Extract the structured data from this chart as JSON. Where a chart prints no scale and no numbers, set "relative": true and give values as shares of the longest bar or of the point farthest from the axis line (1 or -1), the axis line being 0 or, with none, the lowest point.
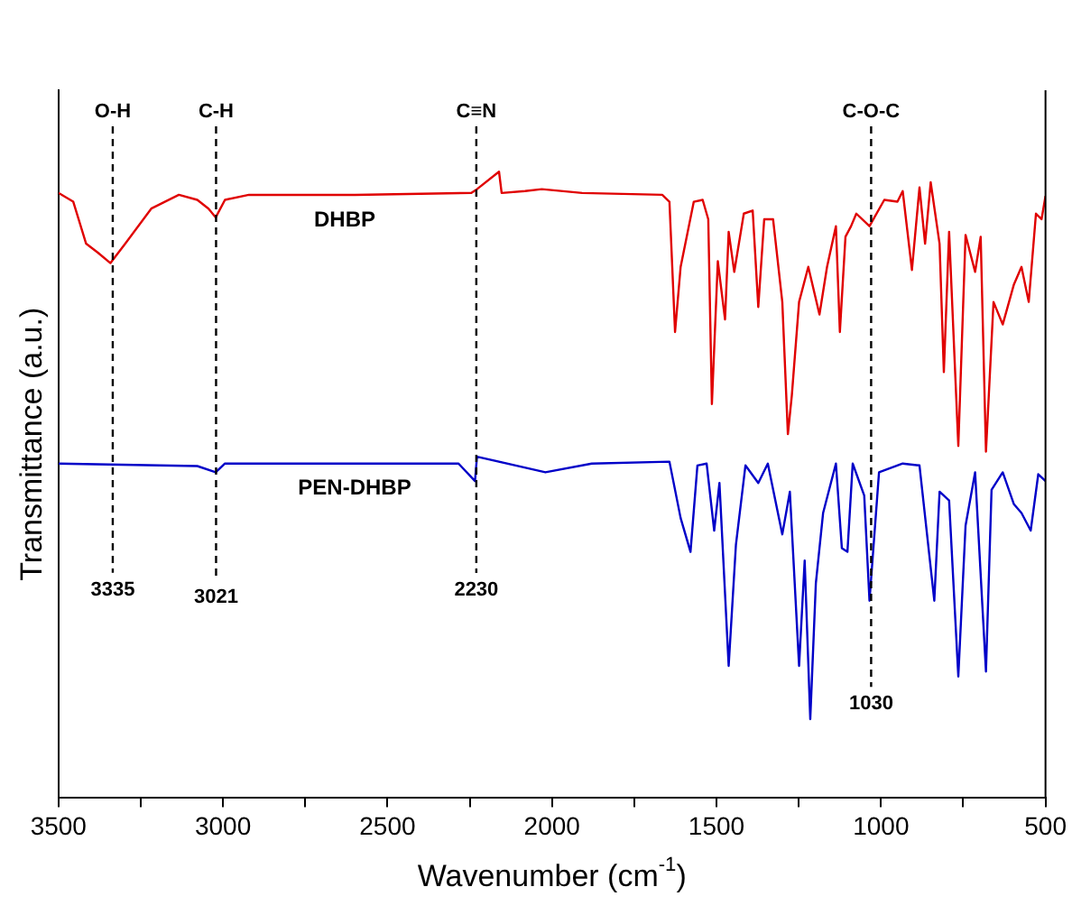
{
  "chart_data": {
    "type": "line",
    "relative": true,
    "xlabel": "Wavenumber (cm$^{-1}$)",
    "ylabel": "Transmittance (a.u.)",
    "xlim": [
      3500,
      500
    ],
    "xticks": [
      3500,
      {
        "value": 3250,
        "label": null
      },
      3000,
      {
        "value": 2750,
        "label": null
      },
      2500,
      {
        "value": 2250,
        "label": null
      },
      2000,
      {
        "value": 1750,
        "label": null
      },
      1500,
      {
        "value": 1250,
        "label": null
      },
      1000,
      {
        "value": 750,
        "label": null
      },
      500
    ],
    "grid": false,
    "legend": false,
    "series": [
      {
        "name": "DHBP",
        "color": "#e00000",
        "x": [
          3500,
          3455,
          3416,
          3381,
          3342,
          3297,
          3218,
          3134,
          3078,
          3044,
          3022,
          2994,
          2921,
          2599,
          2245,
          2228,
          2161,
          2153,
          2082,
          2031,
          1908,
          1665,
          1643,
          1626,
          1609,
          1569,
          1542,
          1525,
          1514,
          1496,
          1474,
          1463,
          1446,
          1417,
          1390,
          1373,
          1355,
          1328,
          1300,
          1283,
          1271,
          1249,
          1221,
          1187,
          1164,
          1137,
          1125,
          1108,
          1091,
          1075,
          1035,
          990,
          950,
          934,
          906,
          883,
          866,
          849,
          822,
          809,
          793,
          765,
          743,
          714,
          697,
          681,
          658,
          630,
          596,
          573,
          551,
          529,
          512,
          500
        ],
        "values": [
          0.966,
          0.952,
          0.885,
          0.871,
          0.854,
          0.885,
          0.941,
          0.963,
          0.955,
          0.941,
          0.927,
          0.955,
          0.963,
          0.963,
          0.966,
          0.972,
          1.0,
          0.966,
          0.969,
          0.972,
          0.966,
          0.963,
          0.952,
          0.744,
          0.848,
          0.952,
          0.955,
          0.924,
          0.629,
          0.857,
          0.764,
          0.904,
          0.84,
          0.933,
          0.938,
          0.784,
          0.924,
          0.924,
          0.792,
          0.581,
          0.643,
          0.792,
          0.848,
          0.772,
          0.848,
          0.913,
          0.744,
          0.896,
          0.913,
          0.933,
          0.913,
          0.955,
          0.952,
          0.969,
          0.843,
          0.975,
          0.885,
          0.983,
          0.885,
          0.68,
          0.904,
          0.562,
          0.899,
          0.84,
          0.896,
          0.553,
          0.792,
          0.756,
          0.82,
          0.848,
          0.792,
          0.933,
          0.924,
          0.961
        ]
      },
      {
        "name": "PEN-DHBP",
        "color": "#0000c8",
        "x": [
          3500,
          3078,
          3022,
          2994,
          2284,
          2234,
          2228,
          2020,
          1879,
          1643,
          1609,
          1579,
          1558,
          1530,
          1507,
          1491,
          1463,
          1441,
          1412,
          1373,
          1344,
          1300,
          1277,
          1249,
          1232,
          1215,
          1198,
          1176,
          1137,
          1119,
          1102,
          1086,
          1051,
          1035,
          1006,
          934,
          883,
          838,
          822,
          793,
          765,
          743,
          714,
          681,
          664,
          630,
          596,
          573,
          545,
          522,
          500
        ],
        "values": [
          0.534,
          0.53,
          0.52,
          0.534,
          0.534,
          0.506,
          0.545,
          0.52,
          0.534,
          0.537,
          0.447,
          0.393,
          0.531,
          0.534,
          0.427,
          0.503,
          0.211,
          0.404,
          0.531,
          0.503,
          0.534,
          0.421,
          0.489,
          0.211,
          0.379,
          0.126,
          0.343,
          0.455,
          0.534,
          0.399,
          0.393,
          0.534,
          0.483,
          0.315,
          0.52,
          0.534,
          0.531,
          0.315,
          0.489,
          0.475,
          0.194,
          0.435,
          0.52,
          0.202,
          0.492,
          0.52,
          0.469,
          0.455,
          0.427,
          0.517,
          0.506
        ]
      }
    ],
    "ref_lines": [
      {
        "axis": "x",
        "value": 3335,
        "label": "3335",
        "line_style": "dashed"
      },
      {
        "axis": "x",
        "value": 3021,
        "label": "3021",
        "line_style": "dashed"
      },
      {
        "axis": "x",
        "value": 2230,
        "label": "2230",
        "line_style": "dashed"
      },
      {
        "axis": "x",
        "value": 1030,
        "label": "1030",
        "line_style": "dashed"
      }
    ],
    "annotations": [
      "O-H",
      "C-H",
      "C≡N",
      "C-O-C"
    ]
  }
}
